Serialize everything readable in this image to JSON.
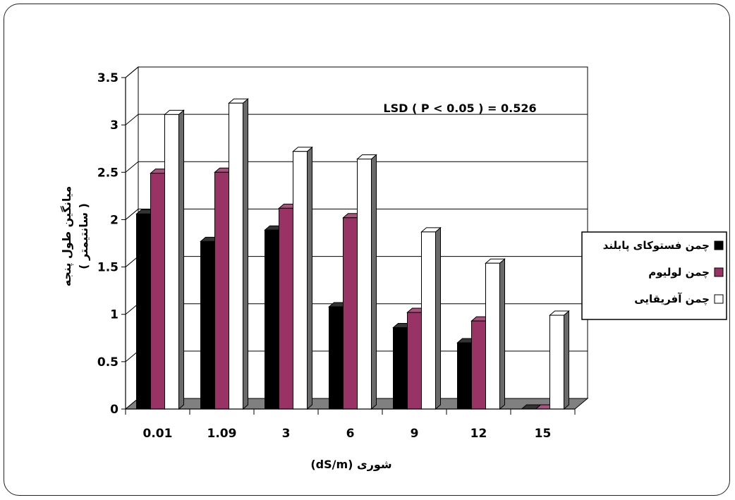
{
  "chart_data": {
    "type": "bar",
    "categories": [
      "0.01",
      "1.09",
      "3",
      "6",
      "9",
      "12",
      "15"
    ],
    "series": [
      {
        "name": "چمن فستوکای پابلند",
        "color": "#000000",
        "values": [
          2.06,
          1.77,
          1.89,
          1.08,
          0.86,
          0.7,
          0.0
        ]
      },
      {
        "name": "چمن لولیوم",
        "color": "#993366",
        "values": [
          2.49,
          2.5,
          2.12,
          2.02,
          1.02,
          0.93,
          0.0
        ]
      },
      {
        "name": "چمن آفریقایی",
        "color": "#ffffff",
        "values": [
          3.11,
          3.23,
          2.72,
          2.64,
          1.87,
          1.54,
          0.99
        ]
      }
    ],
    "title": "",
    "xlabel": "شوری (dS/m)",
    "ylabel_line1": "میانگین طول پنجه",
    "ylabel_line2": "( سانتیمتر )",
    "ylim": [
      0,
      3.5
    ],
    "yticks": [
      "0",
      "0.5",
      "1",
      "1.5",
      "2",
      "2.5",
      "3",
      "3.5"
    ],
    "annotation": "LSD ( P < 0.05 ) = 0.526",
    "grid": true,
    "legend_position": "right",
    "colors": {
      "wall": "#ffffff",
      "floor": "#808080",
      "gridline": "#000000",
      "border": "#222222"
    }
  }
}
